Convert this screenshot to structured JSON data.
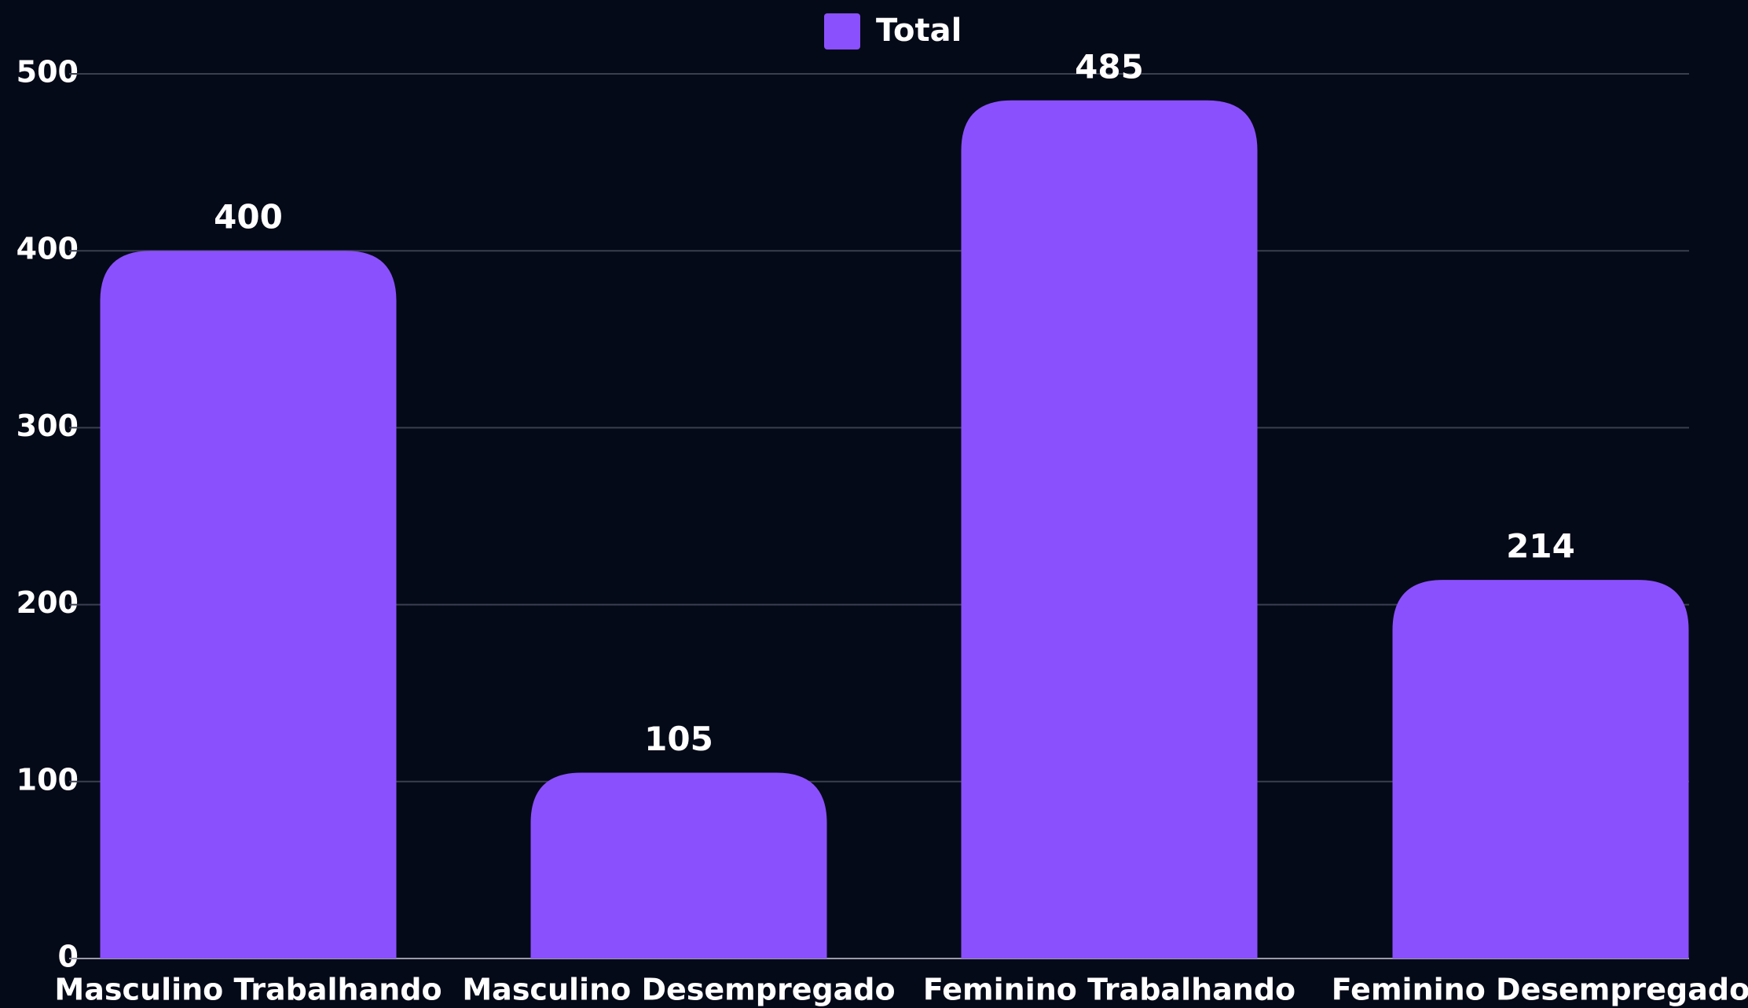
{
  "chart_data": {
    "type": "bar",
    "categories": [
      "Masculino Trabalhando",
      "Masculino Desempregado",
      "Feminino Trabalhando",
      "Feminino Desempregado"
    ],
    "series": [
      {
        "name": "Total",
        "color": "#8b50fd",
        "values": [
          400,
          105,
          485,
          214
        ]
      }
    ],
    "ylim": [
      0,
      500
    ],
    "yticks": [
      0,
      100,
      200,
      300,
      400,
      500
    ],
    "grid": true,
    "legend": "top"
  }
}
